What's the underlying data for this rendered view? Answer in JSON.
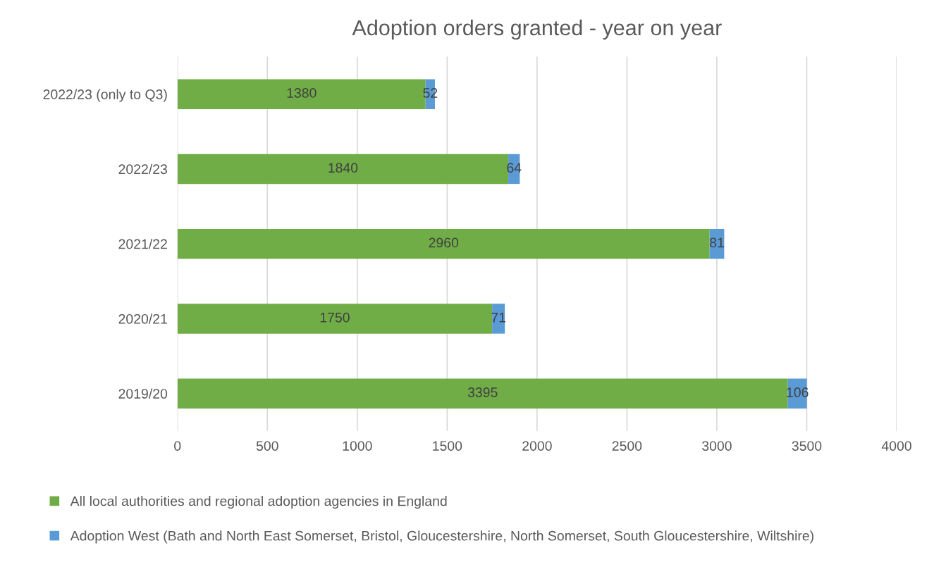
{
  "chart_data": {
    "type": "bar",
    "orientation": "horizontal",
    "stacked": true,
    "title": "Adoption orders granted - year on year",
    "categories": [
      "2022/23 (only to Q3)",
      "2022/23",
      "2021/22",
      "2020/21",
      "2019/20"
    ],
    "series": [
      {
        "name": "All local authorities and regional adoption agencies in England",
        "color": "#70ad47",
        "values": [
          1380,
          1840,
          2960,
          1750,
          3395
        ]
      },
      {
        "name": "Adoption West (Bath and North East Somerset, Bristol, Gloucestershire, North Somerset, South Gloucestershire, Wiltshire)",
        "color": "#5b9bd5",
        "values": [
          52,
          64,
          81,
          71,
          106
        ]
      }
    ],
    "xlim": [
      0,
      4000
    ],
    "xticks": [
      0,
      500,
      1000,
      1500,
      2000,
      2500,
      3000,
      3500,
      4000
    ],
    "grid": "x",
    "legend": "bottom",
    "data_labels": true
  }
}
